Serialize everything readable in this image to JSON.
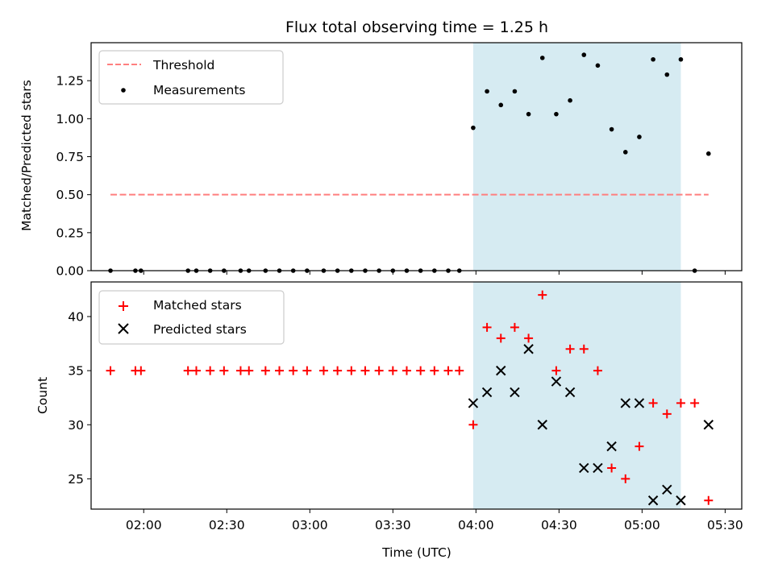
{
  "chart_data": {
    "title": "Flux total observing time = 1.25 h",
    "xlabel": "Time (UTC)",
    "xlim": [
      "01:41",
      "05:36"
    ],
    "xticks": [
      "02:00",
      "02:30",
      "03:00",
      "03:30",
      "04:00",
      "04:30",
      "05:00",
      "05:30"
    ],
    "shaded_span": [
      "03:59",
      "05:14"
    ],
    "shaded_color": "#add8e6",
    "panels": [
      {
        "type": "scatter",
        "ylabel": "Matched/Predicted stars",
        "ylim": [
          0,
          1.5
        ],
        "yticks": [
          "0.00",
          "0.25",
          "0.50",
          "0.75",
          "1.00",
          "1.25"
        ],
        "legend_position": "upper-left",
        "series": [
          {
            "name": "Threshold",
            "style": "dashed-line",
            "color": "#ff7f7f",
            "x": [
              "01:48",
              "05:24"
            ],
            "y": [
              0.5,
              0.5
            ]
          },
          {
            "name": "Measurements",
            "style": "dot",
            "color": "#000000",
            "x": [
              "01:48",
              "01:57",
              "01:59",
              "02:16",
              "02:19",
              "02:24",
              "02:29",
              "02:35",
              "02:38",
              "02:44",
              "02:49",
              "02:54",
              "02:59",
              "03:05",
              "03:10",
              "03:15",
              "03:20",
              "03:25",
              "03:30",
              "03:35",
              "03:40",
              "03:45",
              "03:50",
              "03:54",
              "03:59",
              "04:04",
              "04:09",
              "04:14",
              "04:19",
              "04:24",
              "04:29",
              "04:34",
              "04:39",
              "04:44",
              "04:49",
              "04:54",
              "04:59",
              "05:04",
              "05:09",
              "05:14",
              "05:19",
              "05:24"
            ],
            "y": [
              0,
              0,
              0,
              0,
              0,
              0,
              0,
              0,
              0,
              0,
              0,
              0,
              0,
              0,
              0,
              0,
              0,
              0,
              0,
              0,
              0,
              0,
              0,
              0,
              0.94,
              1.18,
              1.09,
              1.18,
              1.03,
              1.4,
              1.03,
              1.12,
              1.42,
              1.35,
              0.93,
              0.78,
              0.88,
              1.39,
              1.29,
              1.39,
              0,
              0.77
            ]
          }
        ]
      },
      {
        "type": "scatter",
        "ylabel": "Count",
        "ylim": [
          22.2,
          43.2
        ],
        "yticks": [
          "25",
          "30",
          "35",
          "40"
        ],
        "legend_position": "upper-left",
        "series": [
          {
            "name": "Matched stars",
            "marker": "plus",
            "color": "#ff0000",
            "x": [
              "01:48",
              "01:57",
              "01:59",
              "02:16",
              "02:19",
              "02:24",
              "02:29",
              "02:35",
              "02:38",
              "02:44",
              "02:49",
              "02:54",
              "02:59",
              "03:05",
              "03:10",
              "03:15",
              "03:20",
              "03:25",
              "03:30",
              "03:35",
              "03:40",
              "03:45",
              "03:50",
              "03:54",
              "03:59",
              "04:04",
              "04:09",
              "04:14",
              "04:19",
              "04:24",
              "04:29",
              "04:34",
              "04:39",
              "04:44",
              "04:49",
              "04:54",
              "04:59",
              "05:04",
              "05:09",
              "05:14",
              "05:19",
              "05:24"
            ],
            "y": [
              35,
              35,
              35,
              35,
              35,
              35,
              35,
              35,
              35,
              35,
              35,
              35,
              35,
              35,
              35,
              35,
              35,
              35,
              35,
              35,
              35,
              35,
              35,
              35,
              30,
              39,
              38,
              39,
              38,
              42,
              35,
              37,
              37,
              35,
              26,
              25,
              28,
              32,
              31,
              32,
              32,
              23
            ]
          },
          {
            "name": "Predicted stars",
            "marker": "x",
            "color": "#000000",
            "x": [
              "03:59",
              "04:04",
              "04:09",
              "04:14",
              "04:19",
              "04:24",
              "04:29",
              "04:34",
              "04:39",
              "04:44",
              "04:49",
              "04:54",
              "04:59",
              "05:04",
              "05:09",
              "05:14",
              "05:24"
            ],
            "y": [
              32,
              33,
              35,
              33,
              37,
              30,
              34,
              33,
              26,
              26,
              28,
              32,
              32,
              23,
              24,
              23,
              30
            ]
          }
        ]
      }
    ]
  }
}
